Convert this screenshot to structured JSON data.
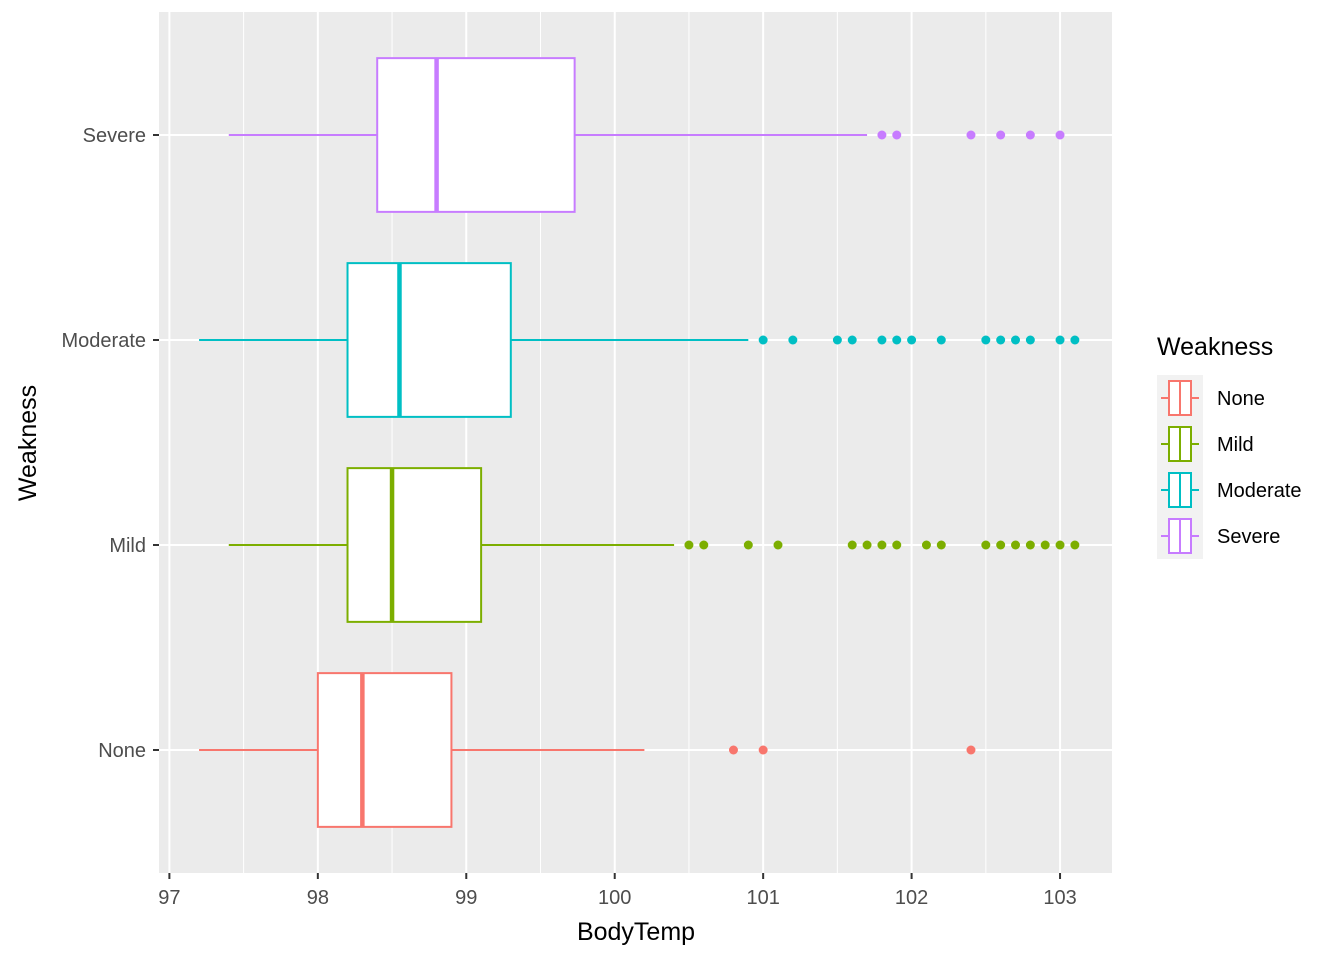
{
  "chart_data": {
    "type": "boxplot",
    "orientation": "horizontal",
    "xlabel": "BodyTemp",
    "ylabel": "Weakness",
    "xlim": [
      96.93,
      103.35
    ],
    "x_ticks": [
      97,
      98,
      99,
      100,
      101,
      102,
      103
    ],
    "x_tick_labels": [
      "97",
      "98",
      "99",
      "100",
      "101",
      "102",
      "103"
    ],
    "grid": true,
    "legend": {
      "title": "Weakness",
      "position": "right",
      "entries": [
        "None",
        "Mild",
        "Moderate",
        "Severe"
      ]
    },
    "categories": [
      "None",
      "Mild",
      "Moderate",
      "Severe"
    ],
    "series": [
      {
        "name": "None",
        "color": "#F8766D",
        "whisker_low": 97.2,
        "q1": 98.0,
        "median": 98.3,
        "q3": 98.9,
        "whisker_high": 100.2,
        "outliers": [
          100.8,
          101.0,
          102.4
        ]
      },
      {
        "name": "Mild",
        "color": "#7CAE00",
        "whisker_low": 97.4,
        "q1": 98.2,
        "median": 98.5,
        "q3": 99.1,
        "whisker_high": 100.4,
        "outliers": [
          100.5,
          100.6,
          100.9,
          101.1,
          101.6,
          101.7,
          101.8,
          101.9,
          102.1,
          102.2,
          102.5,
          102.6,
          102.7,
          102.8,
          102.9,
          103.0,
          103.1
        ]
      },
      {
        "name": "Moderate",
        "color": "#00BFC4",
        "whisker_low": 97.2,
        "q1": 98.2,
        "median": 98.55,
        "q3": 99.3,
        "whisker_high": 100.9,
        "outliers": [
          101.0,
          101.2,
          101.5,
          101.6,
          101.8,
          101.9,
          102.0,
          102.2,
          102.5,
          102.6,
          102.7,
          102.8,
          103.0,
          103.1
        ]
      },
      {
        "name": "Severe",
        "color": "#C77CFF",
        "whisker_low": 97.4,
        "q1": 98.4,
        "median": 98.8,
        "q3": 99.73,
        "whisker_high": 101.7,
        "outliers": [
          101.8,
          101.9,
          102.4,
          102.6,
          102.8,
          103.0
        ]
      }
    ]
  }
}
